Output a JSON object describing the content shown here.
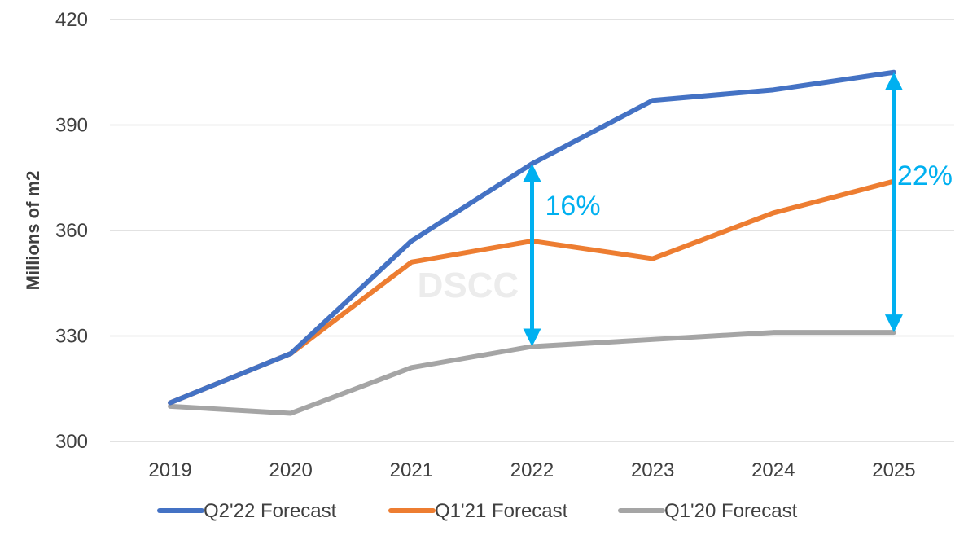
{
  "chart_data": {
    "type": "line",
    "title": "",
    "xlabel": "",
    "ylabel": "Millions of m2",
    "ylim": [
      300,
      420
    ],
    "yticks": [
      300,
      330,
      360,
      390,
      420
    ],
    "grid": true,
    "legend_position": "bottom",
    "categories": [
      "2019",
      "2020",
      "2021",
      "2022",
      "2023",
      "2024",
      "2025"
    ],
    "series": [
      {
        "name": "Q2'22 Forecast",
        "color": "#4472C4",
        "values": [
          311,
          325,
          357,
          379,
          397,
          400,
          405
        ]
      },
      {
        "name": "Q1'21 Forecast",
        "color": "#ED7D31",
        "values": [
          311,
          325,
          351,
          357,
          352,
          365,
          374
        ]
      },
      {
        "name": "Q1'20 Forecast",
        "color": "#A5A5A5",
        "values": [
          310,
          308,
          321,
          327,
          329,
          331,
          331
        ]
      }
    ],
    "annotations": [
      {
        "label": "16%",
        "x": "2022",
        "y_from": 327,
        "y_to": 379,
        "color": "#00B0F0"
      },
      {
        "label": "22%",
        "x": "2025",
        "y_from": 331,
        "y_to": 405,
        "color": "#00B0F0"
      }
    ],
    "watermark": "DSCC"
  }
}
